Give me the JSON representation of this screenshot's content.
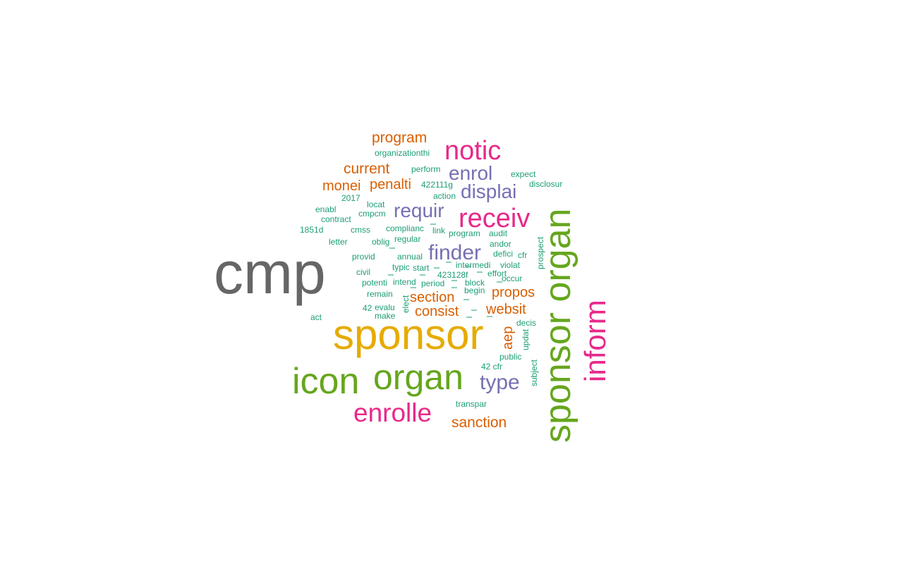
{
  "palette": {
    "gray": "#666666",
    "orange": "#d95f02",
    "purple": "#7570b3",
    "magenta": "#e7298a",
    "green": "#66a61e",
    "gold": "#e6ab02",
    "teal": "#1b9e77"
  },
  "words": [
    {
      "text": "cmp",
      "color": "gray",
      "rotated": false
    },
    {
      "text": "sponsor",
      "color": "gold",
      "rotated": false
    },
    {
      "text": "sponsor organ",
      "color": "green",
      "rotated": true
    },
    {
      "text": "icon",
      "color": "green",
      "rotated": false
    },
    {
      "text": "organ",
      "color": "green",
      "rotated": false
    },
    {
      "text": "receiv",
      "color": "magenta",
      "rotated": false
    },
    {
      "text": "notic",
      "color": "magenta",
      "rotated": false
    },
    {
      "text": "inform",
      "color": "magenta",
      "rotated": true
    },
    {
      "text": "enrolle",
      "color": "magenta",
      "rotated": false
    },
    {
      "text": "finder",
      "color": "purple",
      "rotated": false
    },
    {
      "text": "enrol",
      "color": "purple",
      "rotated": false
    },
    {
      "text": "displai",
      "color": "purple",
      "rotated": false
    },
    {
      "text": "requir",
      "color": "purple",
      "rotated": false
    },
    {
      "text": "type",
      "color": "purple",
      "rotated": false
    },
    {
      "text": "program",
      "color": "orange",
      "rotated": false
    },
    {
      "text": "current",
      "color": "orange",
      "rotated": false
    },
    {
      "text": "monei",
      "color": "orange",
      "rotated": false
    },
    {
      "text": "penalti",
      "color": "orange",
      "rotated": false
    },
    {
      "text": "section",
      "color": "orange",
      "rotated": false
    },
    {
      "text": "propos",
      "color": "orange",
      "rotated": false
    },
    {
      "text": "consist",
      "color": "orange",
      "rotated": false
    },
    {
      "text": "websit",
      "color": "orange",
      "rotated": false
    },
    {
      "text": "aep",
      "color": "orange",
      "rotated": true
    },
    {
      "text": "sanction",
      "color": "orange",
      "rotated": false
    },
    {
      "text": "organizationthi",
      "color": "teal",
      "rotated": false
    },
    {
      "text": "perform",
      "color": "teal",
      "rotated": false
    },
    {
      "text": "expect",
      "color": "teal",
      "rotated": false
    },
    {
      "text": "disclosur",
      "color": "teal",
      "rotated": false
    },
    {
      "text": "422111g",
      "color": "teal",
      "rotated": false
    },
    {
      "text": "action",
      "color": "teal",
      "rotated": false
    },
    {
      "text": "2017",
      "color": "teal",
      "rotated": false
    },
    {
      "text": "locat",
      "color": "teal",
      "rotated": false
    },
    {
      "text": "enabl",
      "color": "teal",
      "rotated": false
    },
    {
      "text": "cmpcm",
      "color": "teal",
      "rotated": false
    },
    {
      "text": "contract",
      "color": "teal",
      "rotated": false
    },
    {
      "text": "1851d",
      "color": "teal",
      "rotated": false
    },
    {
      "text": "cmss",
      "color": "teal",
      "rotated": false
    },
    {
      "text": "complianc",
      "color": "teal",
      "rotated": false
    },
    {
      "text": "link",
      "color": "teal",
      "rotated": false
    },
    {
      "text": "program",
      "color": "teal",
      "rotated": false
    },
    {
      "text": "audit",
      "color": "teal",
      "rotated": false
    },
    {
      "text": "prospect",
      "color": "teal",
      "rotated": true
    },
    {
      "text": "letter",
      "color": "teal",
      "rotated": false
    },
    {
      "text": "oblig",
      "color": "teal",
      "rotated": false
    },
    {
      "text": "regular",
      "color": "teal",
      "rotated": false
    },
    {
      "text": "andor",
      "color": "teal",
      "rotated": false
    },
    {
      "text": "provid",
      "color": "teal",
      "rotated": false
    },
    {
      "text": "annual",
      "color": "teal",
      "rotated": false
    },
    {
      "text": "defici",
      "color": "teal",
      "rotated": false
    },
    {
      "text": "cfr",
      "color": "teal",
      "rotated": false
    },
    {
      "text": "typic",
      "color": "teal",
      "rotated": false
    },
    {
      "text": "start",
      "color": "teal",
      "rotated": false
    },
    {
      "text": "intermedi",
      "color": "teal",
      "rotated": false
    },
    {
      "text": "violat",
      "color": "teal",
      "rotated": false
    },
    {
      "text": "civil",
      "color": "teal",
      "rotated": false
    },
    {
      "text": "423128f",
      "color": "teal",
      "rotated": false
    },
    {
      "text": "effort",
      "color": "teal",
      "rotated": false
    },
    {
      "text": "potenti",
      "color": "teal",
      "rotated": false
    },
    {
      "text": "intend",
      "color": "teal",
      "rotated": false
    },
    {
      "text": "period",
      "color": "teal",
      "rotated": false
    },
    {
      "text": "block",
      "color": "teal",
      "rotated": false
    },
    {
      "text": "occur",
      "color": "teal",
      "rotated": false
    },
    {
      "text": "remain",
      "color": "teal",
      "rotated": false
    },
    {
      "text": "begin",
      "color": "teal",
      "rotated": false
    },
    {
      "text": "elect",
      "color": "teal",
      "rotated": true
    },
    {
      "text": "42",
      "color": "teal",
      "rotated": false
    },
    {
      "text": "evalu",
      "color": "teal",
      "rotated": false
    },
    {
      "text": "act",
      "color": "teal",
      "rotated": false
    },
    {
      "text": "make",
      "color": "teal",
      "rotated": false
    },
    {
      "text": "decis",
      "color": "teal",
      "rotated": false
    },
    {
      "text": "updat",
      "color": "teal",
      "rotated": true
    },
    {
      "text": "public",
      "color": "teal",
      "rotated": false
    },
    {
      "text": "subject",
      "color": "teal",
      "rotated": true
    },
    {
      "text": "42 cfr",
      "color": "teal",
      "rotated": false
    },
    {
      "text": "transpar",
      "color": "teal",
      "rotated": false
    }
  ]
}
